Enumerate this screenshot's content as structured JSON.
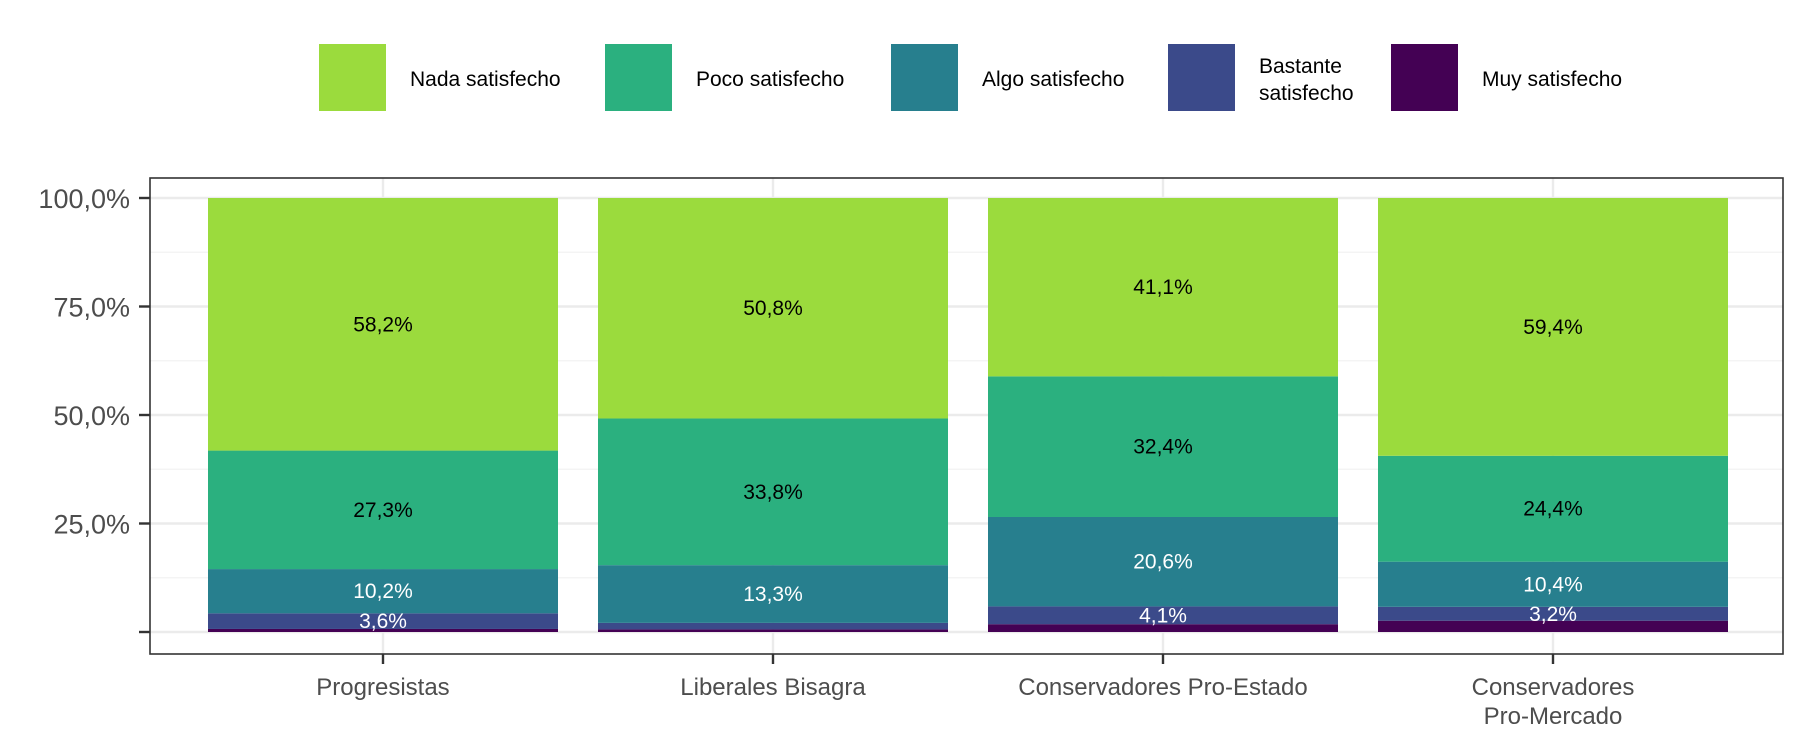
{
  "chart_data": {
    "type": "bar",
    "stacked": true,
    "categories": [
      "Progresistas",
      "Liberales Bisagra",
      "Conservadores Pro-Estado",
      "Conservadores Pro-Mercado"
    ],
    "category_lines": [
      [
        "Progresistas"
      ],
      [
        "Liberales Bisagra"
      ],
      [
        "Conservadores Pro-Estado"
      ],
      [
        "Conservadores",
        "Pro-Mercado"
      ]
    ],
    "series": [
      {
        "name": "Muy satisfecho",
        "color": "#440154",
        "values": [
          0.7,
          0.6,
          1.8,
          2.6
        ],
        "labels": [
          "",
          "",
          "",
          ""
        ],
        "label_color": "#ffffff"
      },
      {
        "name": "Bastante satisfecho",
        "color": "#3b4a8a",
        "values": [
          3.6,
          1.5,
          4.1,
          3.2
        ],
        "labels": [
          "3,6%",
          "",
          "4,1%",
          "3,2%"
        ],
        "label_color": "#ffffff"
      },
      {
        "name": "Algo satisfecho",
        "color": "#277f8e",
        "values": [
          10.2,
          13.3,
          20.6,
          10.4
        ],
        "labels": [
          "10,2%",
          "13,3%",
          "20,6%",
          "10,4%"
        ],
        "label_color": "#ffffff"
      },
      {
        "name": "Poco satisfecho",
        "color": "#2bb07f",
        "values": [
          27.3,
          33.8,
          32.4,
          24.4
        ],
        "labels": [
          "27,3%",
          "33,8%",
          "32,4%",
          "24,4%"
        ],
        "label_color": "#000000"
      },
      {
        "name": "Nada satisfecho",
        "color": "#9bdb3d",
        "values": [
          58.2,
          50.8,
          41.1,
          59.4
        ],
        "labels": [
          "58,2%",
          "50,8%",
          "41,1%",
          "59,4%"
        ],
        "label_color": "#000000"
      }
    ],
    "legend": [
      {
        "label_lines": [
          "Nada satisfecho"
        ],
        "color": "#9bdb3d"
      },
      {
        "label_lines": [
          "Poco satisfecho"
        ],
        "color": "#2bb07f"
      },
      {
        "label_lines": [
          "Algo satisfecho"
        ],
        "color": "#277f8e"
      },
      {
        "label_lines": [
          "Bastante",
          "satisfecho"
        ],
        "color": "#3b4a8a"
      },
      {
        "label_lines": [
          "Muy satisfecho"
        ],
        "color": "#440154"
      }
    ],
    "legend_position": "top",
    "y_ticks": [
      {
        "value": 0,
        "label": ""
      },
      {
        "value": 25,
        "label": "25,0%"
      },
      {
        "value": 50,
        "label": "50,0%"
      },
      {
        "value": 75,
        "label": "75,0%"
      },
      {
        "value": 100,
        "label": "100,0%"
      }
    ],
    "ylim": [
      0,
      100
    ],
    "title": "",
    "xlabel": "",
    "ylabel": "",
    "grid": true,
    "colors": {
      "panel_border": "#333333",
      "grid_major": "#ebebeb",
      "grid_minor": "#f3f3f3",
      "tick_text": "#4d4d4d"
    }
  }
}
